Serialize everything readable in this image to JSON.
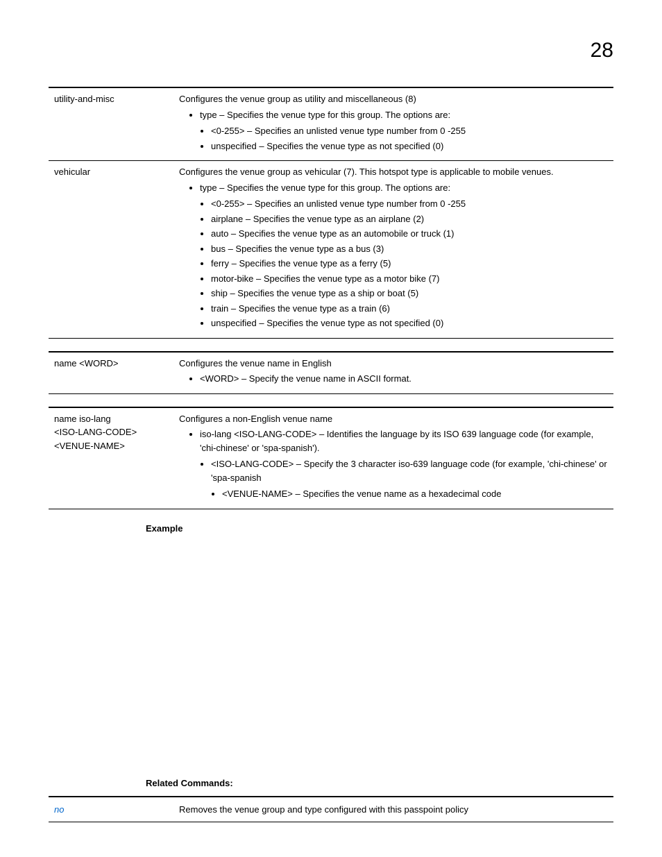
{
  "page_number": "28",
  "tables": {
    "t1": {
      "rows": [
        {
          "term": "utility-and-misc",
          "lead": "Configures the venue group as utility and miscellaneous (8)",
          "b1": [
            "type – Specifies the venue type for this group. The options are:"
          ],
          "b2": [
            "<0-255> – Specifies an unlisted venue type number from 0 -255",
            "unspecified – Specifies the venue type as not specified (0)"
          ]
        },
        {
          "term": "vehicular",
          "lead": "Configures the venue group as vehicular (7). This hotspot type is applicable to mobile venues.",
          "b1": [
            "type – Specifies the venue type for this group. The options are:"
          ],
          "b2": [
            "<0-255> – Specifies an unlisted venue type number from 0 -255",
            "airplane – Specifies the venue type as an airplane (2)",
            "auto – Specifies the venue type as an automobile or truck (1)",
            "bus – Specifies the venue type as a bus (3)",
            "ferry – Specifies the venue type as a ferry (5)",
            "motor-bike – Specifies the venue type as a motor bike (7)",
            "ship – Specifies the venue type as a ship or boat (5)",
            "train – Specifies the venue type as a train (6)",
            "unspecified – Specifies the venue type as not specified (0)"
          ]
        }
      ]
    },
    "t2": {
      "term": "name <WORD>",
      "lead": "Configures the venue name in English",
      "b1": [
        "<WORD> – Specify the venue name in ASCII format."
      ]
    },
    "t3": {
      "term_lines": [
        "name iso-lang",
        "<ISO-LANG-CODE>",
        "<VENUE-NAME>"
      ],
      "lead": "Configures a non-English venue name",
      "b1": [
        "iso-lang <ISO-LANG-CODE> – Identifies the language by its ISO 639 language code (for example, 'chi-chinese' or 'spa-spanish')."
      ],
      "b2": [
        "<ISO-LANG-CODE> – Specify the 3 character iso-639 language code (for example, 'chi-chinese' or 'spa-spanish"
      ],
      "b3": [
        "<VENUE-NAME> – Specifies the venue name as a hexadecimal code"
      ]
    }
  },
  "headings": {
    "example": "Example",
    "related": "Related Commands:"
  },
  "related": {
    "cmd": "no",
    "desc": "Removes the venue group and type configured with this passpoint policy"
  }
}
